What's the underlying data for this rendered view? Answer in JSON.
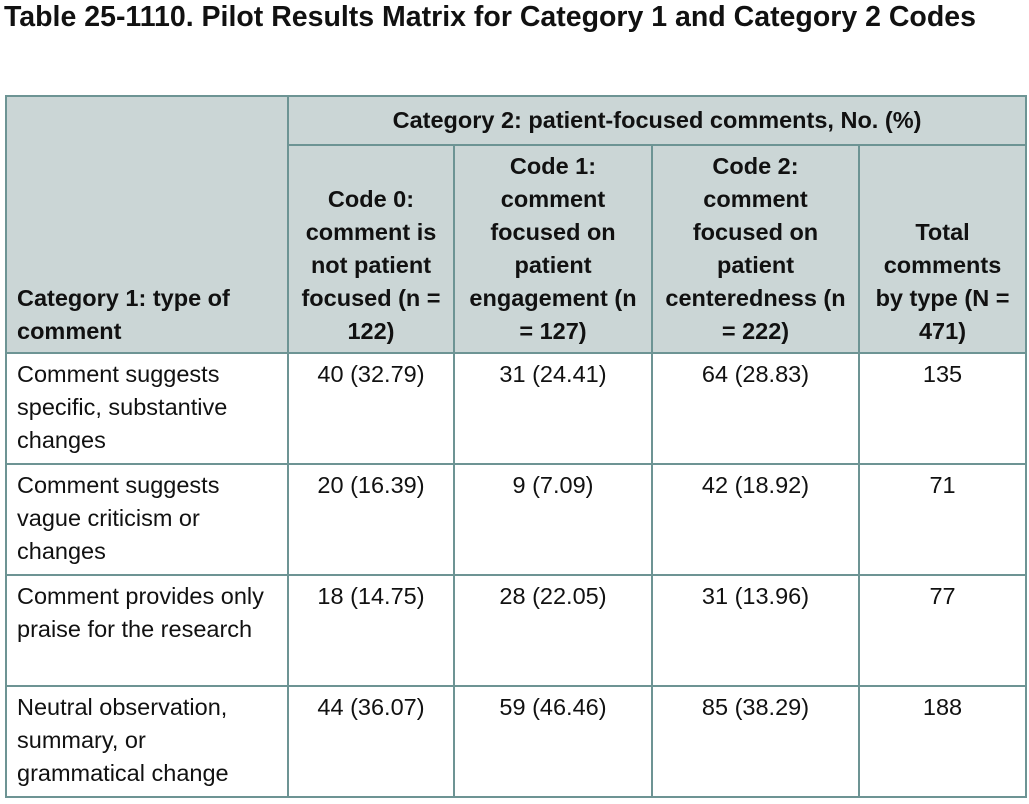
{
  "header": {
    "title": "Table 25-1110. Pilot Results Matrix for Category 1 and Category 2 Codes"
  },
  "table": {
    "row_header": "Category 1: type of comment",
    "group_header": "Category 2: patient-focused comments, No. (%)",
    "columns": [
      "Code 0: comment is not patient focused (n = 122)",
      "Code 1: comment focused on patient engagement (n = 127)",
      "Code 2: comment focused on patient centeredness (n = 222)",
      "Total comments by type (N = 471)"
    ],
    "rows": [
      {
        "label": "Comment suggests specific, substantive changes",
        "cells": [
          "40 (32.79)",
          "31 (24.41)",
          "64 (28.83)",
          "135"
        ]
      },
      {
        "label": "Comment suggests vague criticism or changes",
        "cells": [
          "20 (16.39)",
          "9 (7.09)",
          "42 (18.92)",
          "71"
        ]
      },
      {
        "label": "Comment provides only praise for the research",
        "cells": [
          "18 (14.75)",
          "28 (22.05)",
          "31 (13.96)",
          "77"
        ]
      },
      {
        "label": "Neutral observation, summary, or grammatical change",
        "cells": [
          "44 (36.07)",
          "59 (46.46)",
          "85 (38.29)",
          "188"
        ]
      }
    ]
  }
}
